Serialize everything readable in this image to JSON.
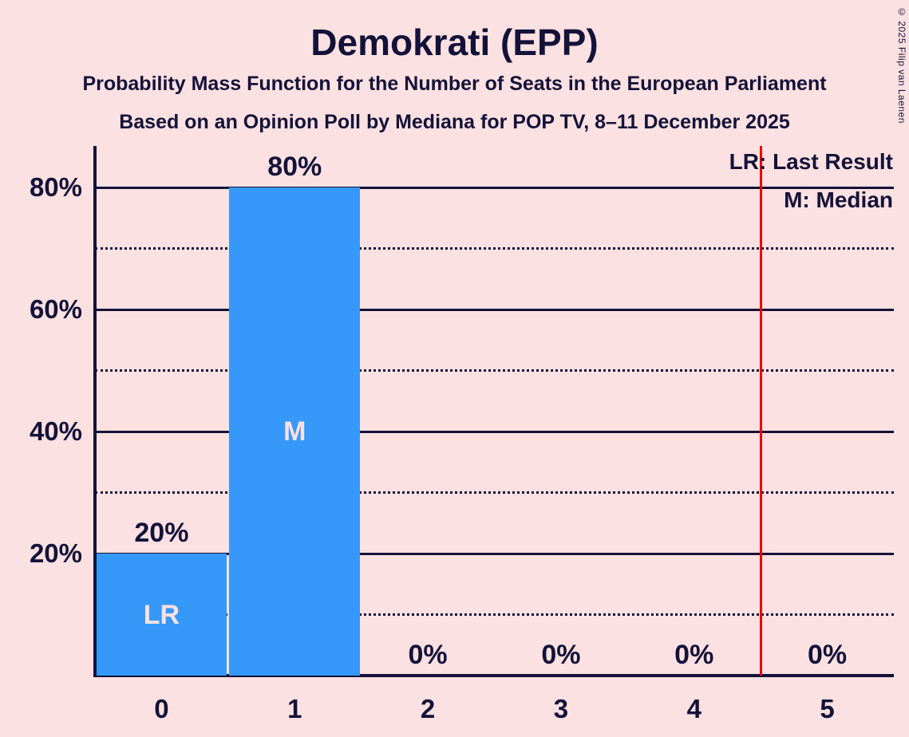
{
  "title": "Demokrati (EPP)",
  "subtitle1": "Probability Mass Function for the Number of Seats in the European Parliament",
  "subtitle2": "Based on an Opinion Poll by Mediana for POP TV, 8–11 December 2025",
  "copyright": "© 2025 Filip van Laenen",
  "legend": {
    "last_result_label": "LR: Last Result",
    "median_label": "M: Median"
  },
  "colors": {
    "background": "#fbe1e1",
    "bar": "#3699fa",
    "text": "#141239",
    "last_result_line": "#ee0404",
    "bar_inner_label": "#fbe1e1"
  },
  "chart_data": {
    "type": "bar",
    "title": "Demokrati (EPP)",
    "xlabel": "",
    "ylabel": "",
    "categories": [
      "0",
      "1",
      "2",
      "3",
      "4",
      "5"
    ],
    "values": [
      20,
      80,
      0,
      0,
      0,
      0
    ],
    "value_labels": [
      "20%",
      "80%",
      "0%",
      "0%",
      "0%",
      "0%"
    ],
    "bar_annotations": [
      "LR",
      "M",
      "",
      "",
      "",
      ""
    ],
    "y_solid_gridlines": [
      20,
      40,
      60,
      80
    ],
    "y_tick_labels": [
      "20%",
      "40%",
      "60%",
      "80%"
    ],
    "y_dotted_gridlines": [
      10,
      30,
      50,
      70
    ],
    "ylim": [
      0,
      86.8
    ],
    "last_result_marker_x": 4.5,
    "grid": true,
    "legend_position": "top-right"
  }
}
